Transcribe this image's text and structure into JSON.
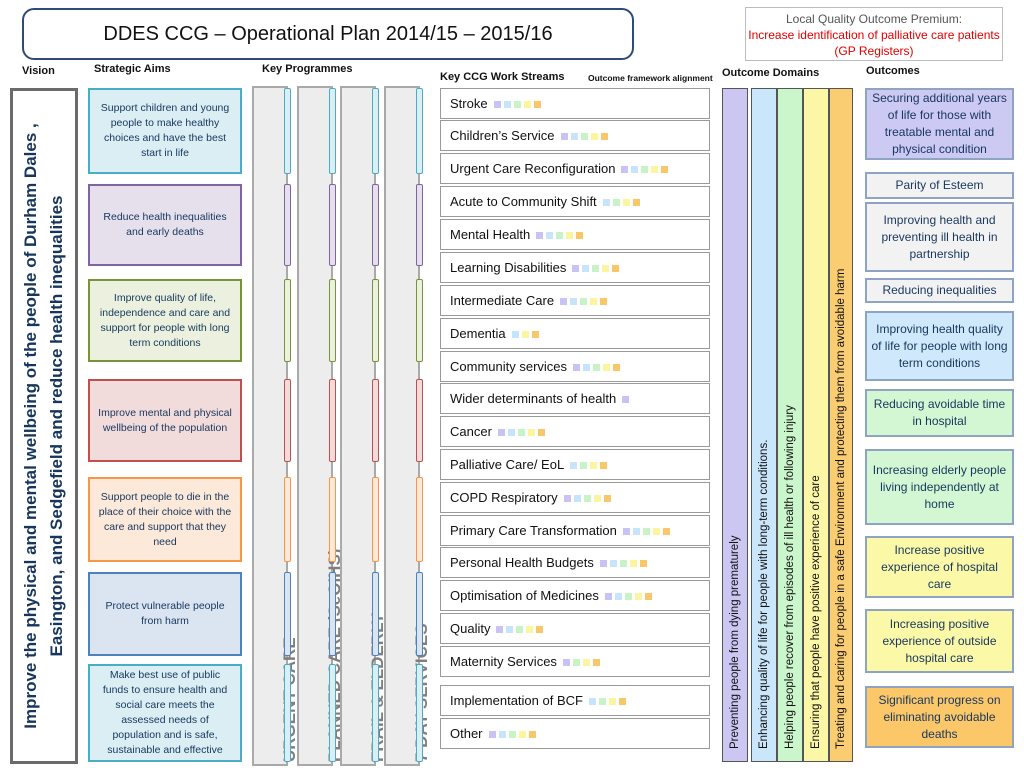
{
  "title": "DDES CCG – Operational Plan 2014/15 – 2015/16",
  "premium": {
    "line1": "Local Quality Outcome Premium:",
    "line2": "Increase identification of palliative care patients (GP Registers)"
  },
  "headers": {
    "vision": "Vision",
    "strategic_aims": "Strategic Aims",
    "key_programmes": "Key Programmes",
    "work_streams": "Key CCG Work Streams",
    "alignment": "Outcome framework alignment",
    "outcome_domains": "Outcome Domains",
    "outcomes": "Outcomes"
  },
  "vision": "Improve the physical and mental wellbeing of the people of Durham Dales , Easington, and Sedgefield  and reduce health inequalities",
  "aims": [
    {
      "text": "Support children and young people to make healthy choices and have the best start in life",
      "color": "#daeef3",
      "border": "#4bacc6"
    },
    {
      "text": "Reduce health inequalities and early deaths",
      "color": "#e5e0ec",
      "border": "#8064a2"
    },
    {
      "text": "Improve quality of life, independence and care and support for people with long term conditions",
      "color": "#ebf1de",
      "border": "#77933c"
    },
    {
      "text": "Improve mental and physical wellbeing of the population",
      "color": "#f2dcdb",
      "border": "#c0504d"
    },
    {
      "text": "Support people to die in the place of their choice with the care and support that they need",
      "color": "#fde9d9",
      "border": "#f79646"
    },
    {
      "text": "Protect vulnerable people from harm",
      "color": "#dbe5f1",
      "border": "#4f81bd"
    },
    {
      "text": "Make best use of public funds to ensure health and social care meets the assessed needs of population and is safe, sustainable and effective",
      "color": "#daeef3",
      "border": "#4bacc6"
    }
  ],
  "programmes": [
    "URGENT CARE",
    "PLANNED CARE (SeQIHS)",
    "FRAIL & ELDERLY",
    "7 DAY SERVICES"
  ],
  "domain_colors": [
    "#c9c3f5",
    "#c6e4fb",
    "#c7f3c7",
    "#fbf5a0",
    "#f9c76a"
  ],
  "work_streams": [
    {
      "label": "Stroke",
      "squares": [
        0,
        1,
        2,
        3,
        4
      ]
    },
    {
      "label": "Children’s Service",
      "squares": [
        0,
        1,
        2,
        3,
        4
      ]
    },
    {
      "label": "Urgent Care Reconfiguration",
      "squares": [
        0,
        1,
        2,
        3,
        4
      ]
    },
    {
      "label": "Acute to Community Shift",
      "squares": [
        1,
        2,
        3,
        4
      ]
    },
    {
      "label": "Mental Health",
      "squares": [
        0,
        1,
        2,
        3,
        4
      ]
    },
    {
      "label": "Learning Disabilities",
      "squares": [
        0,
        1,
        2,
        3,
        4
      ]
    },
    {
      "label": "Intermediate Care",
      "squares": [
        0,
        1,
        2,
        3,
        4
      ]
    },
    {
      "label": "Dementia",
      "squares": [
        1,
        3,
        4
      ]
    },
    {
      "label": "Community  services",
      "squares": [
        0,
        1,
        2,
        3,
        4
      ]
    },
    {
      "label": "Wider determinants of health",
      "squares": [
        0
      ]
    },
    {
      "label": "Cancer",
      "squares": [
        0,
        1,
        2,
        3,
        4
      ]
    },
    {
      "label": "Palliative Care/ EoL",
      "squares": [
        1,
        2,
        3,
        4
      ]
    },
    {
      "label": "COPD Respiratory",
      "squares": [
        0,
        1,
        2,
        3,
        4
      ]
    },
    {
      "label": "Primary Care Transformation",
      "squares": [
        0,
        1,
        2,
        3,
        4
      ]
    },
    {
      "label": "Personal Health Budgets",
      "squares": [
        0,
        1,
        2,
        3,
        4
      ]
    },
    {
      "label": "Optimisation of Medicines",
      "squares": [
        0,
        1,
        2,
        3,
        4
      ]
    },
    {
      "label": "Quality",
      "squares": [
        0,
        1,
        2,
        3,
        4
      ]
    },
    {
      "label": "Maternity Services",
      "squares": [
        0,
        2,
        3,
        4
      ]
    },
    {
      "label": "Implementation of BCF",
      "squares": [
        1,
        2,
        3,
        4
      ]
    },
    {
      "label": "Other",
      "squares": [
        0,
        1,
        2,
        3,
        4
      ]
    }
  ],
  "domains": [
    {
      "text": "Preventing people from dying prematurely",
      "color": "#ccc6f2"
    },
    {
      "text": "Enhancing quality of life for people with long-term conditions.",
      "color": "#cae6fb"
    },
    {
      "text": "Helping people recover from episodes of ill health or following injury",
      "color": "#cbf5cb"
    },
    {
      "text": "Ensuring that people have positive experience of care",
      "color": "#fcf7a6"
    },
    {
      "text": "Treating and caring for people in a safe Environment and protecting them from avoidable harm",
      "color": "#fbcd72"
    }
  ],
  "outcomes": [
    {
      "text": "Securing additional years of life for those with treatable mental and physical condition",
      "color": "#ccc9f3",
      "border": "#8fa3c2"
    },
    {
      "text": "Parity of Esteem",
      "color": "#f2f2f2",
      "border": "#8fa3c2"
    },
    {
      "text": "Improving health and preventing ill health in partnership",
      "color": "#f2f2f2",
      "border": "#8fa3c2"
    },
    {
      "text": "Reducing inequalities",
      "color": "#f2f2f2",
      "border": "#8fa3c2"
    },
    {
      "text": "Improving health quality of life for people with long term conditions",
      "color": "#cfe8fb",
      "border": "#8fa3c2"
    },
    {
      "text": "Reducing avoidable time in hospital",
      "color": "#d3f7d3",
      "border": "#8fa3c2"
    },
    {
      "text": "Increasing elderly people living independently at home",
      "color": "#d3f7d3",
      "border": "#8fa3c2"
    },
    {
      "text": "Increase positive experience of hospital care",
      "color": "#fbf8a8",
      "border": "#8fa3c2"
    },
    {
      "text": "Increasing positive experience of outside hospital care",
      "color": "#fbf8a8",
      "border": "#8fa3c2"
    },
    {
      "text": "Significant progress on eliminating avoidable deaths",
      "color": "#fbc768",
      "border": "#8fa3c2"
    }
  ]
}
